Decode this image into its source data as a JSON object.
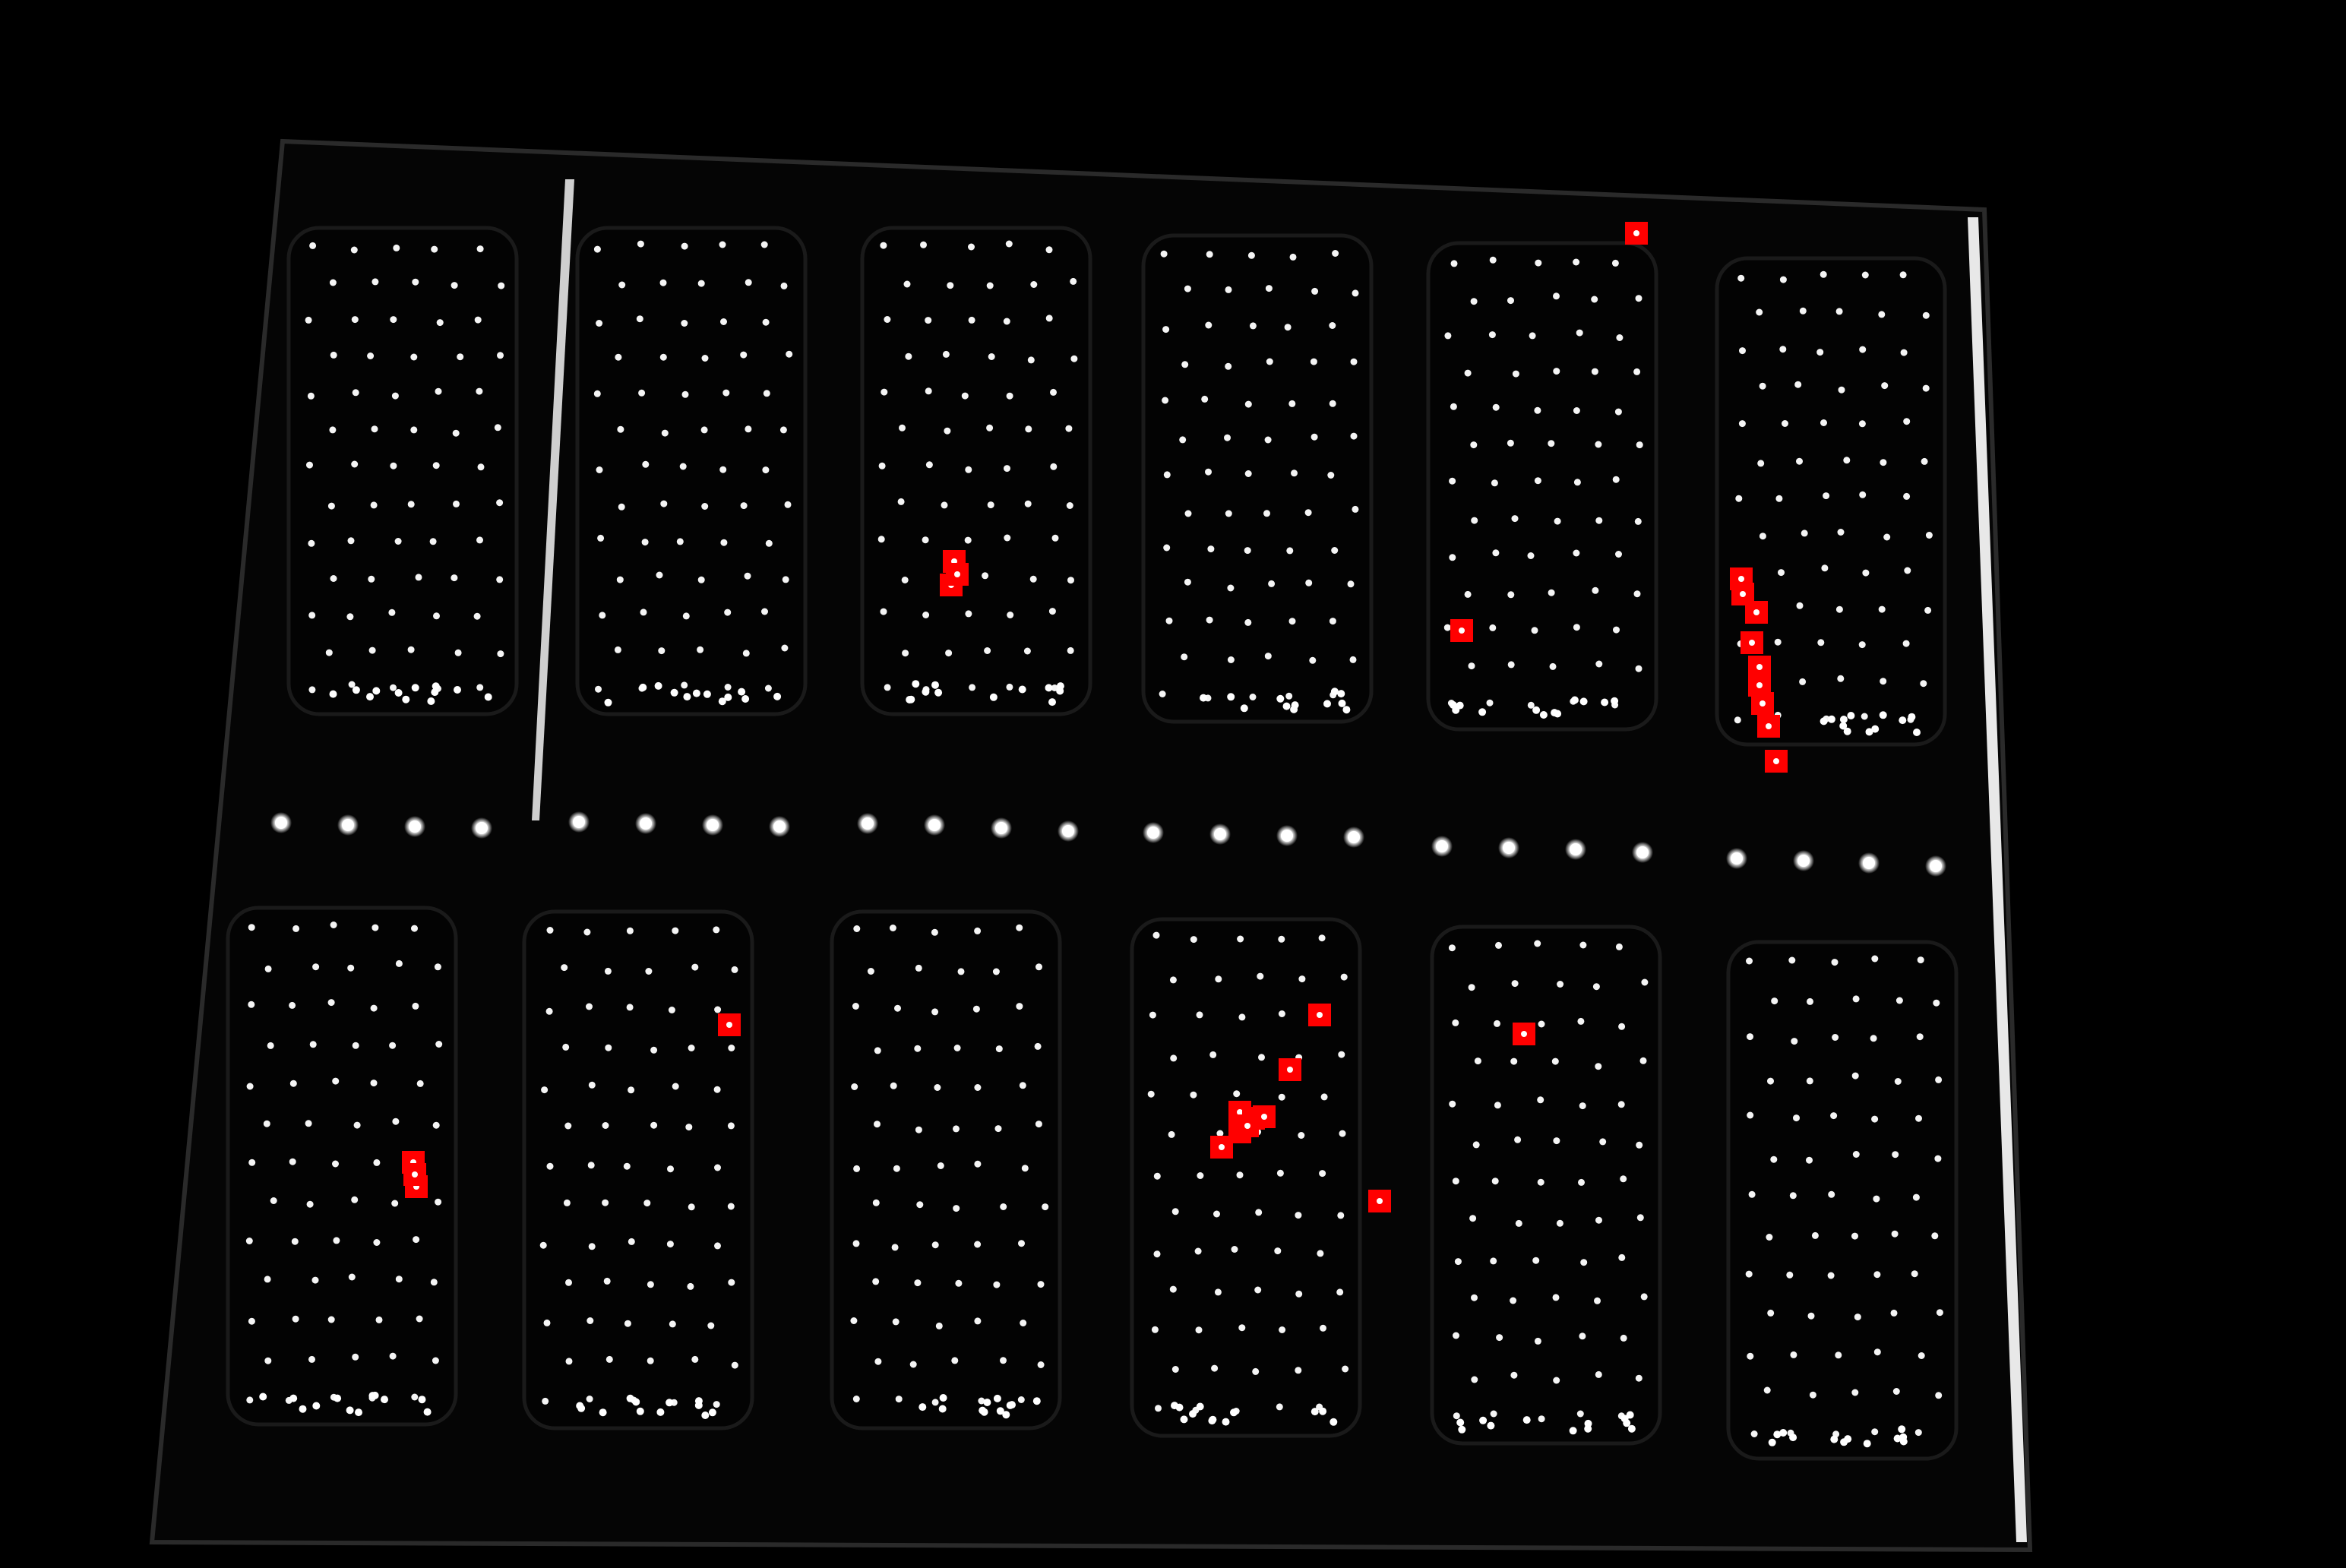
{
  "image": {
    "description_visible_text": "",
    "background_color": "#000000",
    "marker_color": "#ff0000",
    "dot_color": "#ffffff"
  },
  "markers": {
    "count": 28
  },
  "panels": {
    "rows": 2,
    "columns": 6
  }
}
